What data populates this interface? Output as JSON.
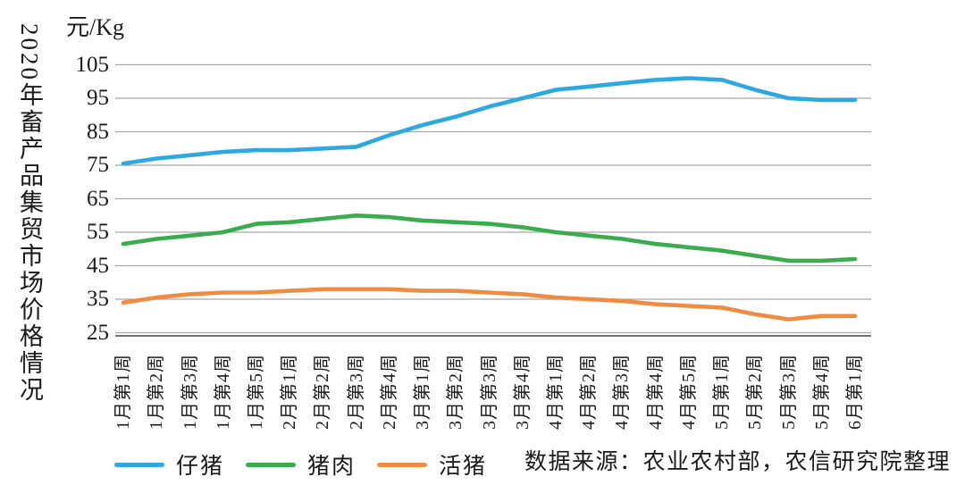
{
  "chart_data": {
    "type": "line",
    "title": "2020年畜产品集贸市场价格情况",
    "unit_label": "元/Kg",
    "source_note": "数据来源：农业农村部，农信研究院整理",
    "categories": [
      "1月第1周",
      "1月第2周",
      "1月第3周",
      "1月第4周",
      "1月第5周",
      "2月第1周",
      "2月第2周",
      "2月第3周",
      "2月第4周",
      "3月第1周",
      "3月第2周",
      "3月第3周",
      "3月第4周",
      "4月第1周",
      "4月第2周",
      "4月第3周",
      "4月第4周",
      "4月第5周",
      "5月第1周",
      "5月第2周",
      "5月第3周",
      "5月第4周",
      "6月第1周"
    ],
    "series": [
      {
        "key": "piglet",
        "name": "仔猪",
        "color": "#2EA9E0",
        "values": [
          75.5,
          77,
          78,
          79,
          79.5,
          79.5,
          80,
          80.5,
          84,
          87,
          89.5,
          92.5,
          95,
          97.5,
          98.5,
          99.5,
          100.5,
          101,
          100.5,
          97.5,
          95,
          94.5,
          94.5
        ]
      },
      {
        "key": "pork",
        "name": "猪肉",
        "color": "#3AAB4E",
        "values": [
          51.5,
          53,
          54,
          55,
          57.5,
          58,
          59,
          60,
          59.5,
          58.5,
          58,
          57.5,
          56.5,
          55,
          54,
          53,
          51.5,
          50.5,
          49.5,
          48,
          46.5,
          46.5,
          47
        ]
      },
      {
        "key": "live-hog",
        "name": "活猪",
        "color": "#EF8C42",
        "values": [
          34,
          35.5,
          36.5,
          37,
          37,
          37.5,
          38,
          38,
          38,
          37.5,
          37.5,
          37,
          36.5,
          35.5,
          35,
          34.5,
          33.5,
          33,
          32.5,
          30.5,
          29,
          30,
          30
        ]
      }
    ],
    "ylim": [
      25,
      105
    ],
    "yticks": [
      25,
      35,
      45,
      55,
      65,
      75,
      85,
      95,
      105
    ],
    "grid": "horizontal",
    "legend_position": "bottom",
    "axis_colors": {
      "gridline": "#a6a6a6",
      "axis_line": "#404040"
    }
  }
}
